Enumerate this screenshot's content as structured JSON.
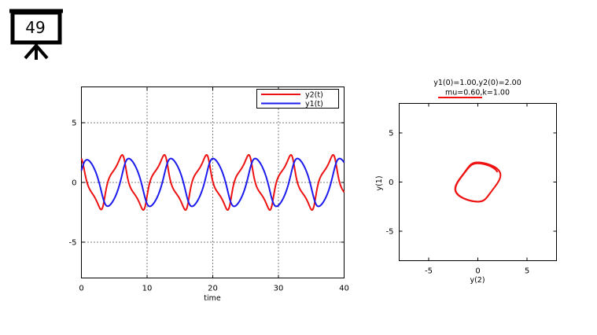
{
  "slide": {
    "number": "49"
  },
  "chart_data": [
    {
      "type": "line",
      "title": "",
      "xlabel": "time",
      "ylabel": "",
      "xlim": [
        0,
        40
      ],
      "ylim": [
        -8,
        8
      ],
      "xticks": [
        0,
        10,
        20,
        30,
        40
      ],
      "yticks": [
        -5,
        0,
        5
      ],
      "grid": true,
      "legend_position": "top-right",
      "series": [
        {
          "name": "y2(t)",
          "color": "#ee1111"
        },
        {
          "name": "y1(t)",
          "color": "#1a1aee"
        }
      ]
    },
    {
      "type": "line",
      "title": "y1(0)=1.00,y2(0)=2.00",
      "subtitle": "mu=0.60,k=1.00",
      "xlabel": "y(2)",
      "ylabel": "y(1)",
      "xlim": [
        -8,
        8
      ],
      "ylim": [
        -8,
        8
      ],
      "xticks": [
        -5,
        0,
        5
      ],
      "yticks": [
        -5,
        0,
        5
      ],
      "grid": false,
      "series": [
        {
          "name": "",
          "color": "#ee1111"
        }
      ]
    }
  ]
}
